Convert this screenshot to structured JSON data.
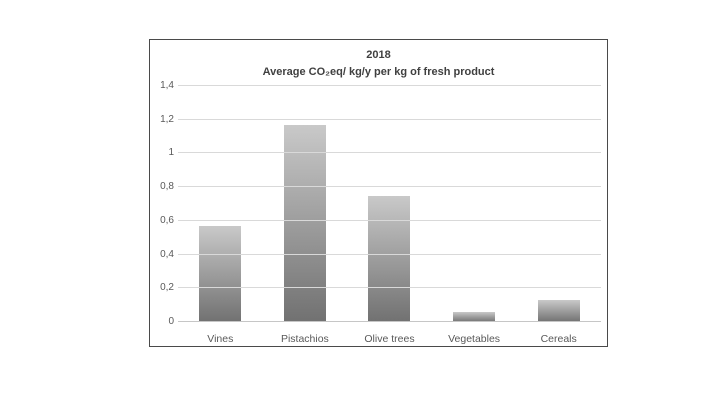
{
  "chart_data": {
    "type": "bar",
    "title": "2018",
    "subtitle": "Average CO₂eq/ kg/y per kg of fresh product",
    "categories": [
      "Vines",
      "Pistachios",
      "Olive trees",
      "Vegetables",
      "Cereals"
    ],
    "values": [
      0.57,
      1.17,
      0.75,
      0.06,
      0.13
    ],
    "xlabel": "",
    "ylabel": "",
    "ylim": [
      0,
      1.4
    ],
    "y_ticks": [
      {
        "value": 1.4,
        "label": "1,4"
      },
      {
        "value": 1.2,
        "label": "1,2"
      },
      {
        "value": 1.0,
        "label": "1"
      },
      {
        "value": 0.8,
        "label": "0,8"
      },
      {
        "value": 0.6,
        "label": "0,6"
      },
      {
        "value": 0.4,
        "label": "0,4"
      },
      {
        "value": 0.2,
        "label": "0,2"
      },
      {
        "value": 0.0,
        "label": "0"
      }
    ],
    "grid": true,
    "legend": "none",
    "colors": {
      "bar_gradient_top": "#c9c9c9",
      "bar_gradient_bottom": "#717171",
      "gridline": "#d9d9d9",
      "axis_line": "#c6c6c6",
      "title_text": "#404040",
      "tick_text": "#595959",
      "frame_border": "#4a4a4a"
    }
  }
}
